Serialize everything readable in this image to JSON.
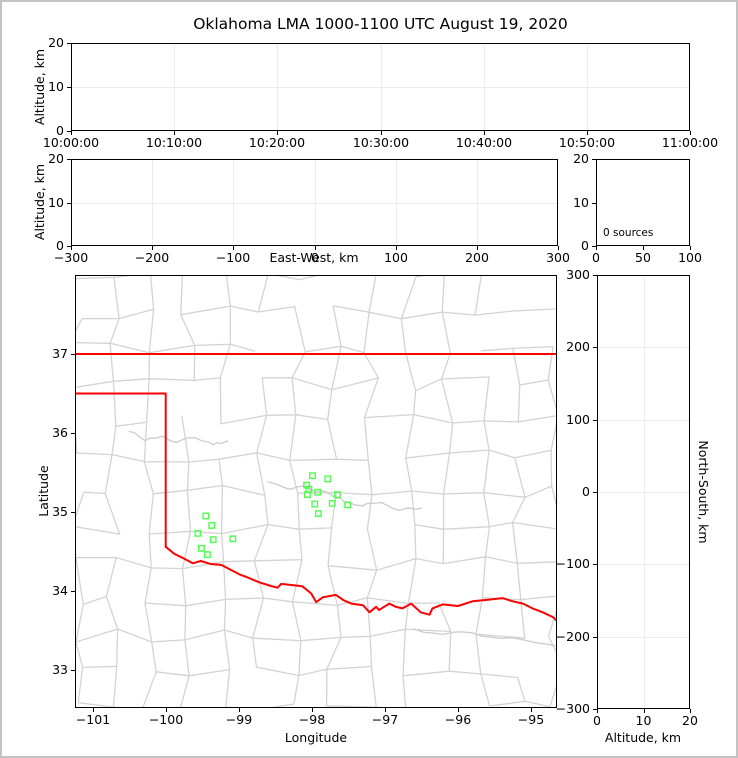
{
  "figure": {
    "title": "Oklahoma LMA 1000-1100 UTC August 19, 2020"
  },
  "colors": {
    "state_border": "#ff0000",
    "county_line": "#d3d3d3",
    "county_river": "#cbcbcb",
    "station_marker": "#4dff4d",
    "gridline": "#ececec",
    "spine": "#000000",
    "figure_border": "#c3c3c3"
  },
  "panels": {
    "time_height": {
      "ylabel": "Altitude, km",
      "ytick_labels": [
        "0",
        "10",
        "20"
      ],
      "xtick_labels": [
        "10:00:00",
        "10:10:00",
        "10:20:00",
        "10:30:00",
        "10:40:00",
        "10:50:00",
        "11:00:00"
      ]
    },
    "ew_height": {
      "ylabel": "Altitude, km",
      "xlabel": "East-West, km",
      "ytick_labels": [
        "0",
        "10",
        "20"
      ],
      "xtick_labels": [
        "−300",
        "−200",
        "−100",
        "0",
        "100",
        "200",
        "300"
      ]
    },
    "src_histogram": {
      "annotation": "0 sources",
      "ytick_labels": [
        "0",
        "10",
        "20"
      ],
      "xtick_labels": [
        "0",
        "50",
        "100"
      ]
    },
    "map": {
      "xlabel": "Longitude",
      "ylabel": "Latitude",
      "xtick_labels": [
        "−101",
        "−100",
        "−99",
        "−98",
        "−97",
        "−96",
        "−95"
      ],
      "ytick_labels": [
        "33",
        "34",
        "35",
        "36",
        "37"
      ]
    },
    "ns_height": {
      "xlabel": "Altitude, km",
      "ylabel": "North-South, km",
      "xtick_labels": [
        "0",
        "10",
        "20"
      ],
      "ytick_labels": [
        "−300",
        "−200",
        "−100",
        "0",
        "100",
        "200",
        "300"
      ]
    }
  },
  "chart_data": [
    {
      "type": "scatter",
      "panel": "time-altitude",
      "title": "Oklahoma LMA 1000-1100 UTC August 19, 2020",
      "xlabel": "",
      "ylabel": "Altitude, km",
      "xlim": [
        "10:00:00",
        "11:00:00"
      ],
      "xticks": [
        "10:00:00",
        "10:10:00",
        "10:20:00",
        "10:30:00",
        "10:40:00",
        "10:50:00",
        "11:00:00"
      ],
      "ylim": [
        0,
        20
      ],
      "yticks": [
        0,
        10,
        20
      ],
      "grid": true,
      "points": []
    },
    {
      "type": "scatter",
      "panel": "eastwest-altitude",
      "xlabel": "East-West, km",
      "ylabel": "Altitude, km",
      "xlim": [
        -300,
        300
      ],
      "xticks": [
        -300,
        -200,
        -100,
        0,
        100,
        200,
        300
      ],
      "ylim": [
        0,
        20
      ],
      "yticks": [
        0,
        10,
        20
      ],
      "grid": true,
      "points": []
    },
    {
      "type": "histogram",
      "panel": "altitude-source-count",
      "annotation": "0 sources",
      "xlim": [
        0,
        100
      ],
      "xticks": [
        0,
        50,
        100
      ],
      "ylim": [
        0,
        20
      ],
      "yticks": [
        0,
        10,
        20
      ],
      "grid": false,
      "values": []
    },
    {
      "type": "scatter",
      "panel": "plan-view-map",
      "xlabel": "Longitude",
      "ylabel": "Latitude",
      "xlim": [
        -101.23,
        -94.63
      ],
      "xticks": [
        -101,
        -100,
        -99,
        -98,
        -97,
        -96,
        -95
      ],
      "ylim": [
        32.52,
        38.0
      ],
      "yticks": [
        33,
        34,
        35,
        36,
        37
      ],
      "grid": false,
      "stations": [
        [
          -99.45,
          34.95
        ],
        [
          -99.37,
          34.83
        ],
        [
          -99.56,
          34.73
        ],
        [
          -99.35,
          34.65
        ],
        [
          -99.08,
          34.66
        ],
        [
          -99.51,
          34.54
        ],
        [
          -99.43,
          34.46
        ],
        [
          -97.99,
          35.46
        ],
        [
          -97.78,
          35.42
        ],
        [
          -98.07,
          35.34
        ],
        [
          -98.04,
          35.29
        ],
        [
          -98.06,
          35.22
        ],
        [
          -97.92,
          35.25
        ],
        [
          -97.65,
          35.22
        ],
        [
          -97.96,
          35.1
        ],
        [
          -97.72,
          35.11
        ],
        [
          -97.51,
          35.09
        ],
        [
          -97.91,
          34.98
        ]
      ],
      "state_border": [
        [
          [
            -101.23,
            37.0
          ],
          [
            -94.63,
            37.0
          ]
        ],
        [
          [
            -94.63,
            37.0
          ],
          [
            -94.63,
            36.5
          ]
        ],
        [
          [
            -101.23,
            36.5
          ],
          [
            -100.0,
            36.5
          ]
        ],
        [
          [
            -100.0,
            36.5
          ],
          [
            -100.0,
            34.56
          ]
        ]
      ],
      "red_river": [
        [
          -100.0,
          34.56
        ],
        [
          -99.88,
          34.47
        ],
        [
          -99.77,
          34.42
        ],
        [
          -99.63,
          34.35
        ],
        [
          -99.52,
          34.38
        ],
        [
          -99.38,
          34.34
        ],
        [
          -99.24,
          34.33
        ],
        [
          -98.99,
          34.21
        ],
        [
          -98.9,
          34.18
        ],
        [
          -98.72,
          34.11
        ],
        [
          -98.58,
          34.07
        ],
        [
          -98.47,
          34.04
        ],
        [
          -98.42,
          34.09
        ],
        [
          -98.22,
          34.07
        ],
        [
          -98.13,
          34.06
        ],
        [
          -98.01,
          33.97
        ],
        [
          -97.94,
          33.86
        ],
        [
          -97.85,
          33.92
        ],
        [
          -97.67,
          33.95
        ],
        [
          -97.56,
          33.88
        ],
        [
          -97.46,
          33.84
        ],
        [
          -97.3,
          33.82
        ],
        [
          -97.21,
          33.73
        ],
        [
          -97.12,
          33.8
        ],
        [
          -97.08,
          33.76
        ],
        [
          -96.94,
          33.84
        ],
        [
          -96.85,
          33.8
        ],
        [
          -96.76,
          33.78
        ],
        [
          -96.64,
          33.84
        ],
        [
          -96.51,
          33.73
        ],
        [
          -96.39,
          33.7
        ],
        [
          -96.35,
          33.78
        ],
        [
          -96.21,
          33.83
        ],
        [
          -96.0,
          33.81
        ],
        [
          -95.8,
          33.87
        ],
        [
          -95.59,
          33.89
        ],
        [
          -95.39,
          33.91
        ],
        [
          -95.25,
          33.87
        ],
        [
          -95.11,
          33.84
        ],
        [
          -94.98,
          33.78
        ],
        [
          -94.84,
          33.73
        ],
        [
          -94.7,
          33.67
        ],
        [
          -94.62,
          33.6
        ]
      ],
      "county_rivers": [
        [
          [
            -100.5,
            36.02
          ],
          [
            -100.28,
            35.9
          ],
          [
            -100.05,
            35.96
          ],
          [
            -99.85,
            35.88
          ],
          [
            -99.6,
            35.94
          ],
          [
            -99.35,
            35.85
          ],
          [
            -99.15,
            35.9
          ]
        ],
        [
          [
            -98.6,
            35.38
          ],
          [
            -98.35,
            35.3
          ],
          [
            -98.1,
            35.33
          ],
          [
            -97.95,
            35.25
          ],
          [
            -97.75,
            35.23
          ],
          [
            -97.55,
            35.12
          ],
          [
            -97.3,
            35.08
          ],
          [
            -97.05,
            35.12
          ],
          [
            -96.8,
            35.02
          ],
          [
            -96.5,
            35.05
          ]
        ],
        [
          [
            -96.6,
            33.52
          ],
          [
            -96.2,
            33.45
          ],
          [
            -95.8,
            33.47
          ],
          [
            -95.4,
            33.4
          ],
          [
            -95.0,
            33.36
          ],
          [
            -94.63,
            33.3
          ]
        ]
      ]
    },
    {
      "type": "scatter",
      "panel": "northsouth-altitude",
      "xlabel": "Altitude, km",
      "ylabel": "North-South, km",
      "xlim": [
        0,
        20
      ],
      "xticks": [
        0,
        10,
        20
      ],
      "ylim": [
        -300,
        300
      ],
      "yticks": [
        -300,
        -200,
        -100,
        0,
        100,
        200,
        300
      ],
      "grid": true,
      "points": []
    }
  ]
}
